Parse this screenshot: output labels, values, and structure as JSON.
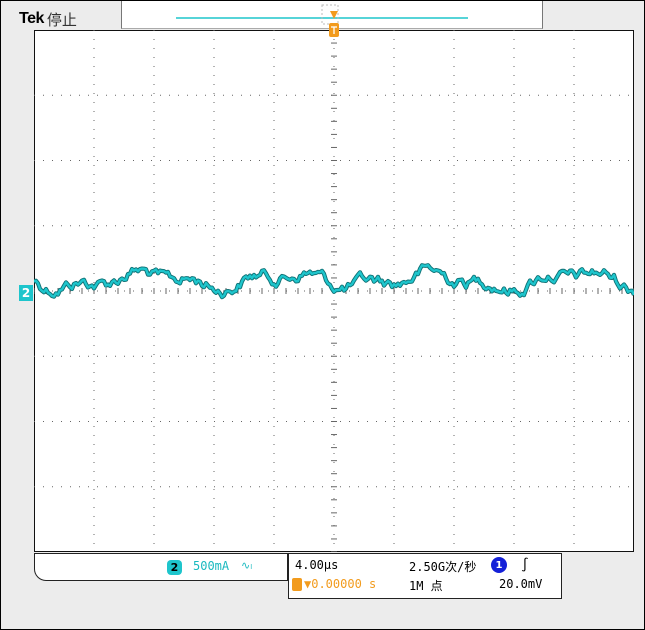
{
  "header": {
    "brand": "Tek",
    "acq_state": "停止"
  },
  "colors": {
    "ch2": "#1ec5cc",
    "trigger": "#f29b1d",
    "ch1": "#1420d8"
  },
  "vertical": {
    "ch2_badge": "2",
    "ch2_scale": "500mA",
    "ch2_bw_icon": "∿ₗ",
    "ch2_marker": "2"
  },
  "horizontal": {
    "timebase": "4.00µs",
    "sample_rate": "2.50G次/秒",
    "trigger_position": "▼0.00000 s",
    "record_length": "1M 点",
    "trigger_marker": "T"
  },
  "trigger": {
    "source_badge": "1",
    "slope_icon": "∫",
    "level": "20.0mV"
  }
}
